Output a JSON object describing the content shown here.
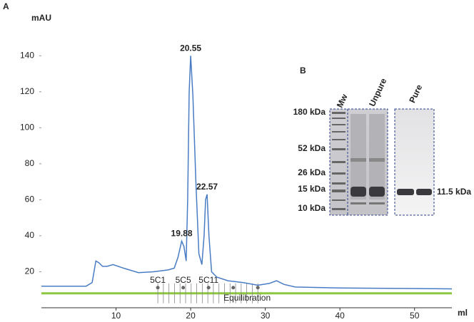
{
  "panel_labels": [
    "A",
    "B"
  ],
  "chart_data": {
    "type": "line",
    "ylabel": "mAU",
    "xlabel": "ml",
    "color": "#4a7cc4",
    "x": [
      0,
      6,
      6.8,
      7.3,
      7.7,
      8.2,
      8.8,
      9.6,
      11,
      13,
      15,
      17,
      17.8,
      18.3,
      18.8,
      19.1,
      19.4,
      19.6,
      19.8,
      20.0,
      20.3,
      20.7,
      21.1,
      21.5,
      21.8,
      22.0,
      22.2,
      22.45,
      22.8,
      23.5,
      25,
      27,
      29,
      30.5,
      31.5,
      32.5,
      34,
      40,
      50,
      55
    ],
    "values": [
      12,
      12,
      14,
      26,
      25,
      23,
      23,
      24,
      22,
      19.5,
      20,
      21,
      22,
      28,
      37,
      34,
      26,
      60,
      120,
      140,
      118,
      70,
      30,
      24,
      40,
      60,
      63,
      40,
      20,
      17,
      15,
      14,
      12.5,
      13.5,
      15,
      13,
      11.5,
      11,
      10.7,
      10.5
    ],
    "xlim": [
      0,
      55
    ],
    "xticks": [
      10,
      20,
      30,
      40,
      50
    ],
    "ylim": [
      0,
      150
    ],
    "yticks": [
      20,
      40,
      60,
      80,
      100,
      120,
      140
    ],
    "annotations": [
      {
        "text": "20.55",
        "x": 20.0,
        "y": 140
      },
      {
        "text": "22.57",
        "x": 22.2,
        "y": 63
      },
      {
        "text": "19.88",
        "x": 18.8,
        "y": 37
      }
    ],
    "fractions": [
      {
        "label": "5C1",
        "x": 15.6
      },
      {
        "label": "5C5",
        "x": 19.0
      },
      {
        "label": "5C11",
        "x": 22.4
      },
      {
        "label": null,
        "x": 25.7
      },
      {
        "label": null,
        "x": 29.0
      }
    ],
    "equilibration": {
      "label": "Equilibration",
      "value": 8,
      "color": "#8dc63f"
    }
  },
  "gel": {
    "lanes": [
      "Mw",
      "Unpure",
      "Pure"
    ],
    "markers": [
      "180 kDa",
      "52 kDa",
      "26 kDa",
      "15 kDa",
      "10 kDa"
    ],
    "band_label": "11.5 kDa"
  }
}
